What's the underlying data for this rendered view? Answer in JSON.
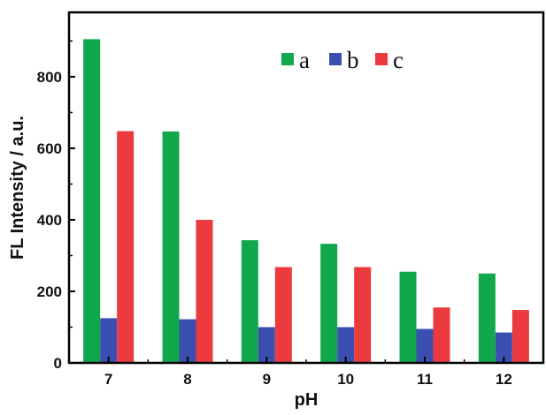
{
  "chart_data": {
    "type": "bar",
    "title": "",
    "xlabel": "pH",
    "ylabel": "FL Intensity / a.u.",
    "categories": [
      "7",
      "8",
      "9",
      "10",
      "11",
      "12"
    ],
    "ylim": [
      0,
      980
    ],
    "yticks": [
      0,
      200,
      400,
      600,
      800
    ],
    "legend_position": "top-right",
    "grid": false,
    "series": [
      {
        "name": "a",
        "color": "#10a84a",
        "values": [
          905,
          647,
          343,
          333,
          255,
          250
        ]
      },
      {
        "name": "b",
        "color": "#3a4fb0",
        "values": [
          125,
          122,
          100,
          100,
          95,
          85
        ]
      },
      {
        "name": "c",
        "color": "#ec3a3f",
        "values": [
          648,
          400,
          268,
          268,
          155,
          148
        ]
      }
    ]
  }
}
